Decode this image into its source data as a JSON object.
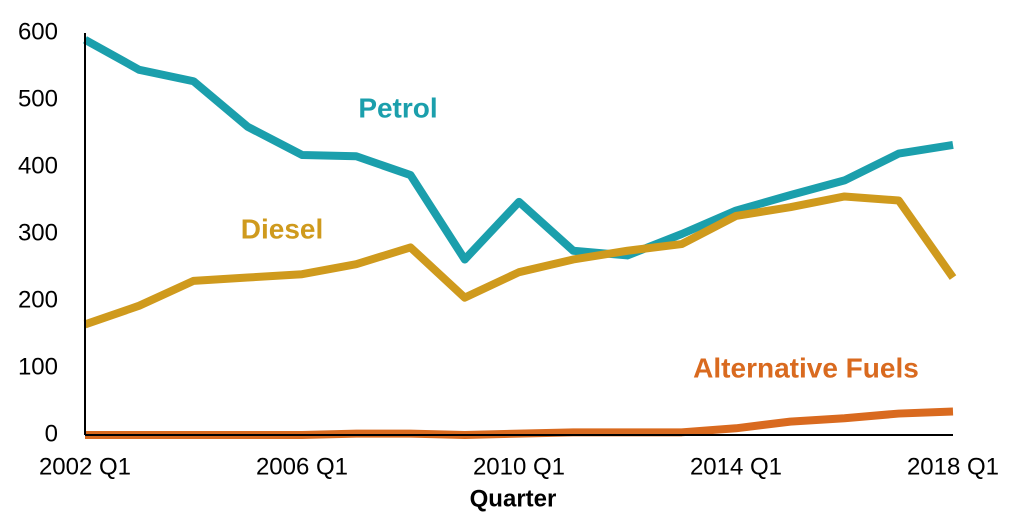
{
  "chart_data": {
    "type": "line",
    "x_label": "Quarter",
    "categories": [
      "2002 Q1",
      null,
      null,
      null,
      "2006 Q1",
      null,
      null,
      null,
      "2010 Q1",
      null,
      null,
      null,
      "2014 Q1",
      null,
      null,
      null,
      "2018 Q1"
    ],
    "series": [
      {
        "name": "Petrol",
        "color": "#1b9fac",
        "values": [
          590,
          545,
          528,
          460,
          418,
          416,
          388,
          262,
          348,
          275,
          268,
          300,
          335,
          358,
          380,
          420,
          433
        ]
      },
      {
        "name": "Diesel",
        "color": "#cf9a1d",
        "values": [
          165,
          193,
          230,
          235,
          240,
          255,
          280,
          205,
          243,
          262,
          275,
          285,
          327,
          340,
          356,
          350,
          235
        ]
      },
      {
        "name": "Alternative Fuels",
        "color": "#d96a1f",
        "values": [
          0,
          0,
          0,
          0,
          0,
          2,
          2,
          0,
          2,
          4,
          4,
          4,
          10,
          20,
          25,
          32,
          35
        ]
      }
    ],
    "ylim": [
      0,
      600
    ],
    "yticks": [
      0,
      100,
      200,
      300,
      400,
      500,
      600
    ],
    "grid": false
  }
}
